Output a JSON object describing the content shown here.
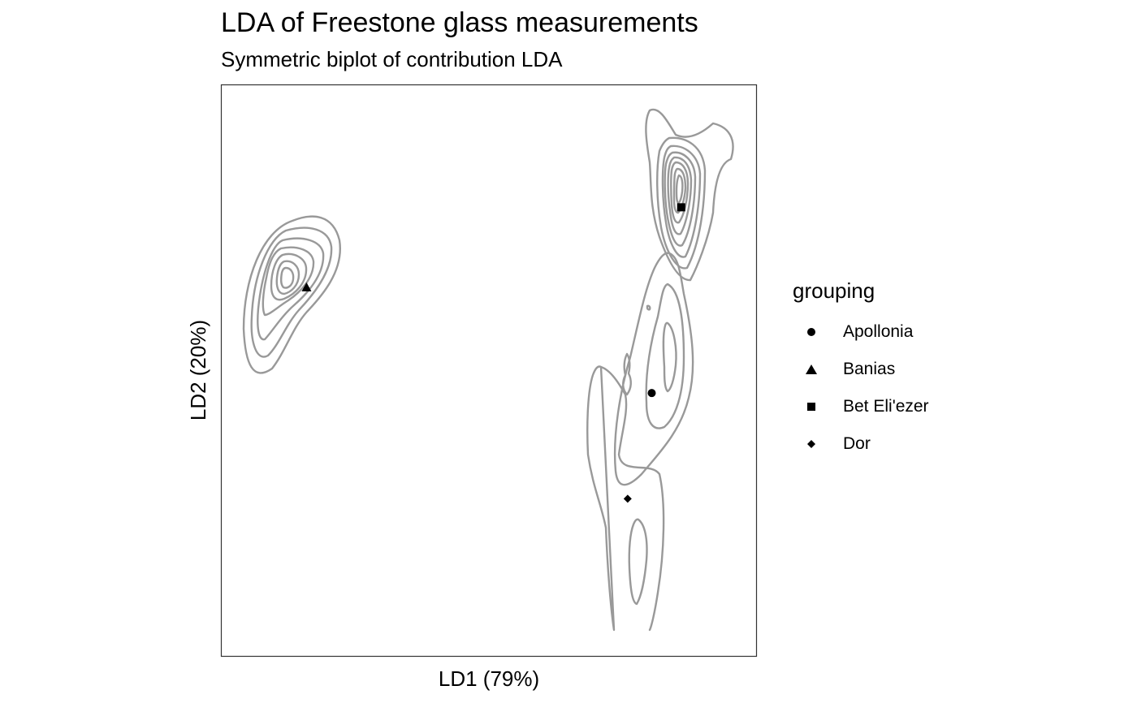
{
  "chart_data": {
    "type": "scatter",
    "title": "LDA of Freestone glass measurements",
    "subtitle": "Symmetric biplot of contribution LDA",
    "xlabel": "LD1 (79%)",
    "ylabel": "LD2 (20%)",
    "xlim": [
      -1,
      1
    ],
    "ylim": [
      -1,
      1
    ],
    "grid": false,
    "legend": {
      "title": "grouping",
      "placement": "right",
      "entries": [
        {
          "label": "Apollonia",
          "shape": "circle"
        },
        {
          "label": "Banias",
          "shape": "triangle"
        },
        {
          "label": "Bet Eli'ezer",
          "shape": "square"
        },
        {
          "label": "Dor",
          "shape": "diamond"
        }
      ]
    },
    "points": [
      {
        "group": "Apollonia",
        "shape": "circle",
        "x": 0.61,
        "y": -0.08
      },
      {
        "group": "Banias",
        "shape": "triangle",
        "x": -0.68,
        "y": 0.29
      },
      {
        "group": "Bet Eli'ezer",
        "shape": "square",
        "x": 0.72,
        "y": 0.57
      },
      {
        "group": "Dor",
        "shape": "diamond",
        "x": 0.52,
        "y": -0.45
      }
    ],
    "contour_color": "#999999",
    "point_color": "#000000"
  }
}
